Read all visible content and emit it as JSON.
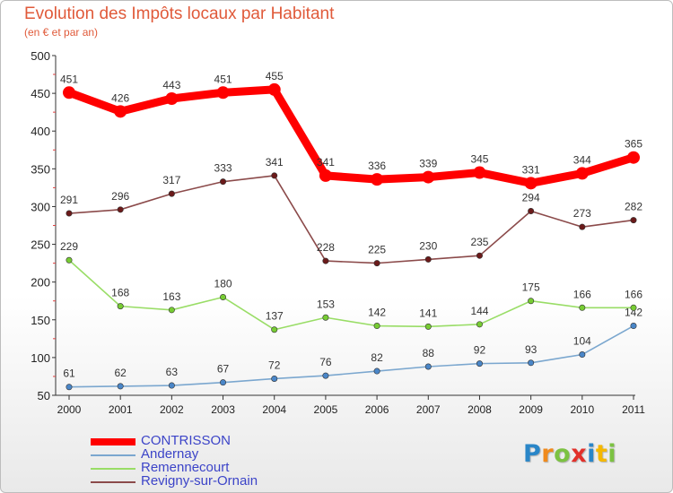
{
  "chart_data": {
    "type": "line",
    "title": "Evolution des Impôts locaux par Habitant",
    "subtitle": "(en € et par an)",
    "xlabel": "",
    "ylabel": "",
    "ylim": [
      50,
      500
    ],
    "yticks": [
      50,
      100,
      150,
      200,
      250,
      300,
      350,
      400,
      450,
      500
    ],
    "categories": [
      "2000",
      "2001",
      "2002",
      "2003",
      "2004",
      "2005",
      "2006",
      "2007",
      "2008",
      "2009",
      "2010",
      "2011"
    ],
    "grid": false,
    "legend_position": "bottom-left",
    "series": [
      {
        "name": "CONTRISSON",
        "color": "#ff0000",
        "point_color": "#ff0000",
        "emphasis": true,
        "values": [
          451,
          426,
          443,
          451,
          455,
          341,
          336,
          339,
          345,
          331,
          344,
          365
        ]
      },
      {
        "name": "Andernay",
        "color": "#7ba7cf",
        "point_color": "#4a86c8",
        "emphasis": false,
        "values": [
          61,
          62,
          63,
          67,
          72,
          76,
          82,
          88,
          92,
          93,
          104,
          142
        ]
      },
      {
        "name": "Remennecourt",
        "color": "#99dd66",
        "point_color": "#77cc33",
        "emphasis": false,
        "values": [
          229,
          168,
          163,
          180,
          137,
          153,
          142,
          141,
          144,
          175,
          166,
          166
        ]
      },
      {
        "name": "Revigny-sur-Ornain",
        "color": "#8b4a4a",
        "point_color": "#6b1a1a",
        "emphasis": false,
        "values": [
          291,
          296,
          317,
          333,
          341,
          228,
          225,
          230,
          235,
          294,
          273,
          282
        ]
      }
    ]
  },
  "logo": {
    "letters": [
      {
        "ch": "P",
        "color": "#2a86c8"
      },
      {
        "ch": "r",
        "color": "#f08a1c"
      },
      {
        "ch": "o",
        "color": "#7cc242"
      },
      {
        "ch": "x",
        "color": "#e2302a"
      },
      {
        "ch": "i",
        "color": "#2a86c8"
      },
      {
        "ch": "t",
        "color": "#f5b800"
      },
      {
        "ch": "i",
        "color": "#7cc242"
      }
    ]
  }
}
